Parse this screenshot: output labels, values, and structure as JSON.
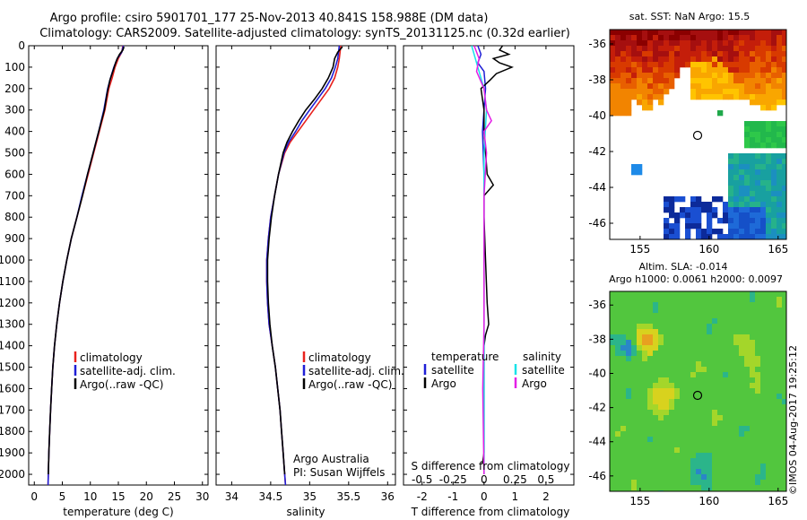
{
  "header": {
    "line1": "Argo profile: csiro 5901701_177 25-Nov-2013 40.841S 158.988E (DM data)",
    "line2": "Climatology: CARS2009. Satellite-adjusted climatology: synTS_20131125.nc (0.32d earlier)"
  },
  "colors": {
    "climatology": "#e8211d",
    "satellite": "#1f1fd6",
    "argo": "#000000",
    "salinity_satellite": "#19e3e8",
    "salinity_argo": "#e41fe6"
  },
  "chart_data": [
    {
      "id": "temperature",
      "type": "line",
      "xlabel": "temperature (deg C)",
      "ylabel": "",
      "xlim": [
        -1,
        31
      ],
      "ylim": [
        2050,
        0
      ],
      "x_ticks": [
        "0",
        "5",
        "10",
        "15",
        "20",
        "25",
        "30"
      ],
      "y_ticks": [
        "0",
        "100",
        "200",
        "300",
        "400",
        "500",
        "600",
        "700",
        "800",
        "900",
        "1000",
        "1100",
        "1200",
        "1300",
        "1400",
        "1500",
        "1600",
        "1700",
        "1800",
        "1900",
        "2000"
      ],
      "legend": [
        "climatology",
        "satellite-adj. clim.",
        "Argo(..raw -QC)"
      ],
      "series": [
        {
          "name": "climatology",
          "points": [
            [
              15.8,
              0
            ],
            [
              15.6,
              30
            ],
            [
              15.0,
              60
            ],
            [
              14.4,
              100
            ],
            [
              13.9,
              150
            ],
            [
              13.3,
              200
            ],
            [
              12.6,
              300
            ],
            [
              11.6,
              400
            ],
            [
              10.6,
              500
            ],
            [
              9.6,
              600
            ],
            [
              8.6,
              700
            ],
            [
              7.6,
              800
            ],
            [
              6.6,
              900
            ],
            [
              5.8,
              1000
            ],
            [
              5.1,
              1100
            ],
            [
              4.5,
              1200
            ],
            [
              4.0,
              1300
            ],
            [
              3.6,
              1400
            ],
            [
              3.3,
              1500
            ],
            [
              3.1,
              1600
            ],
            [
              2.9,
              1700
            ],
            [
              2.75,
              1800
            ],
            [
              2.6,
              1900
            ],
            [
              2.5,
              2000
            ],
            [
              2.45,
              2050
            ]
          ]
        },
        {
          "name": "satellite-adj. clim.",
          "points": [
            [
              15.9,
              0
            ],
            [
              15.6,
              30
            ],
            [
              14.8,
              60
            ],
            [
              14.2,
              100
            ],
            [
              13.6,
              150
            ],
            [
              13.1,
              200
            ],
            [
              12.4,
              300
            ],
            [
              11.5,
              400
            ],
            [
              10.5,
              500
            ],
            [
              9.5,
              600
            ],
            [
              8.5,
              700
            ],
            [
              7.6,
              800
            ],
            [
              6.6,
              900
            ],
            [
              5.8,
              1000
            ],
            [
              5.1,
              1100
            ],
            [
              4.5,
              1200
            ],
            [
              4.0,
              1300
            ],
            [
              3.6,
              1400
            ],
            [
              3.3,
              1500
            ],
            [
              3.1,
              1600
            ],
            [
              2.9,
              1700
            ],
            [
              2.75,
              1800
            ],
            [
              2.6,
              1900
            ],
            [
              2.5,
              2000
            ],
            [
              2.45,
              2050
            ]
          ]
        },
        {
          "name": "Argo(..raw -QC)",
          "points": [
            [
              16.0,
              5
            ],
            [
              15.8,
              20
            ],
            [
              15.2,
              40
            ],
            [
              14.8,
              60
            ],
            [
              14.5,
              80
            ],
            [
              14.0,
              120
            ],
            [
              13.5,
              160
            ],
            [
              13.0,
              220
            ],
            [
              12.5,
              300
            ],
            [
              11.5,
              400
            ],
            [
              10.5,
              500
            ],
            [
              9.5,
              600
            ],
            [
              8.6,
              700
            ],
            [
              7.6,
              800
            ],
            [
              6.6,
              900
            ],
            [
              5.8,
              1000
            ],
            [
              5.1,
              1100
            ],
            [
              4.5,
              1200
            ],
            [
              4.0,
              1300
            ],
            [
              3.6,
              1400
            ],
            [
              3.3,
              1500
            ],
            [
              3.1,
              1600
            ],
            [
              2.9,
              1700
            ],
            [
              2.75,
              1800
            ],
            [
              2.6,
              1900
            ],
            [
              2.5,
              2000
            ]
          ]
        }
      ]
    },
    {
      "id": "salinity",
      "type": "line",
      "xlabel": "salinity",
      "xlim": [
        33.8,
        36.1
      ],
      "ylim": [
        2050,
        0
      ],
      "x_ticks": [
        "34",
        "34.5",
        "35",
        "35.5",
        "36"
      ],
      "legend": [
        "climatology",
        "satellite-adj. clim.",
        "Argo(..raw -QC)"
      ],
      "annotation": [
        "Argo Australia",
        "PI: Susan Wijffels"
      ],
      "series": [
        {
          "name": "climatology",
          "points": [
            [
              35.4,
              0
            ],
            [
              35.38,
              60
            ],
            [
              35.36,
              100
            ],
            [
              35.32,
              150
            ],
            [
              35.25,
              200
            ],
            [
              35.15,
              250
            ],
            [
              35.05,
              300
            ],
            [
              34.95,
              350
            ],
            [
              34.85,
              400
            ],
            [
              34.75,
              450
            ],
            [
              34.68,
              500
            ],
            [
              34.6,
              600
            ],
            [
              34.55,
              700
            ],
            [
              34.5,
              800
            ],
            [
              34.47,
              900
            ],
            [
              34.45,
              1000
            ],
            [
              34.45,
              1100
            ],
            [
              34.46,
              1200
            ],
            [
              34.48,
              1300
            ],
            [
              34.52,
              1400
            ],
            [
              34.56,
              1500
            ],
            [
              34.59,
              1600
            ],
            [
              34.62,
              1700
            ],
            [
              34.64,
              1800
            ],
            [
              34.66,
              1900
            ],
            [
              34.68,
              2000
            ],
            [
              34.69,
              2050
            ]
          ]
        },
        {
          "name": "satellite-adj. clim.",
          "points": [
            [
              35.38,
              0
            ],
            [
              35.36,
              60
            ],
            [
              35.33,
              100
            ],
            [
              35.28,
              150
            ],
            [
              35.2,
              200
            ],
            [
              35.1,
              250
            ],
            [
              35.0,
              300
            ],
            [
              34.9,
              350
            ],
            [
              34.82,
              400
            ],
            [
              34.73,
              450
            ],
            [
              34.67,
              500
            ],
            [
              34.6,
              600
            ],
            [
              34.55,
              700
            ],
            [
              34.5,
              800
            ],
            [
              34.47,
              900
            ],
            [
              34.45,
              1000
            ],
            [
              34.45,
              1100
            ],
            [
              34.46,
              1200
            ],
            [
              34.48,
              1300
            ],
            [
              34.52,
              1400
            ],
            [
              34.56,
              1500
            ],
            [
              34.59,
              1600
            ],
            [
              34.62,
              1700
            ],
            [
              34.64,
              1800
            ],
            [
              34.66,
              1900
            ],
            [
              34.68,
              2000
            ],
            [
              34.69,
              2050
            ]
          ]
        },
        {
          "name": "Argo(..raw -QC)",
          "points": [
            [
              35.42,
              5
            ],
            [
              35.36,
              30
            ],
            [
              35.32,
              60
            ],
            [
              35.3,
              100
            ],
            [
              35.24,
              150
            ],
            [
              35.16,
              200
            ],
            [
              35.06,
              250
            ],
            [
              34.95,
              300
            ],
            [
              34.86,
              350
            ],
            [
              34.78,
              400
            ],
            [
              34.71,
              450
            ],
            [
              34.66,
              500
            ],
            [
              34.6,
              600
            ],
            [
              34.55,
              700
            ],
            [
              34.51,
              800
            ],
            [
              34.48,
              900
            ],
            [
              34.46,
              1000
            ],
            [
              34.46,
              1100
            ],
            [
              34.47,
              1200
            ],
            [
              34.49,
              1300
            ],
            [
              34.52,
              1400
            ],
            [
              34.56,
              1500
            ],
            [
              34.59,
              1600
            ],
            [
              34.62,
              1700
            ],
            [
              34.64,
              1800
            ],
            [
              34.66,
              1900
            ],
            [
              34.68,
              2000
            ]
          ]
        }
      ]
    },
    {
      "id": "difference",
      "type": "line",
      "xlabel": "T difference from climatology",
      "xlabel_top": "S difference from climatology",
      "xlim": [
        -2.6,
        2.9
      ],
      "ylim": [
        2050,
        0
      ],
      "x_ticks": [
        "-2",
        "-1",
        "0",
        "1",
        "2"
      ],
      "x_ticks_s": [
        "-0.5",
        "-0.25",
        "0",
        "0.25",
        "0.5"
      ],
      "legend_left_title": "temperature",
      "legend_right_title": "salinity",
      "legend_left": [
        "satellite",
        "Argo"
      ],
      "legend_right": [
        "satellite",
        "Argo"
      ],
      "series": [
        {
          "name": "T satellite",
          "points": [
            [
              -0.2,
              0
            ],
            [
              -0.1,
              40
            ],
            [
              -0.2,
              80
            ],
            [
              0,
              120
            ],
            [
              0.05,
              200
            ],
            [
              0,
              300
            ],
            [
              -0.05,
              400
            ],
            [
              0,
              600
            ],
            [
              0,
              800
            ],
            [
              0,
              1000
            ],
            [
              0,
              1300
            ],
            [
              0,
              1600
            ],
            [
              0,
              1900
            ],
            [
              0,
              2000
            ]
          ]
        },
        {
          "name": "T Argo",
          "points": [
            [
              0.6,
              0
            ],
            [
              0.5,
              20
            ],
            [
              0.8,
              40
            ],
            [
              0.3,
              60
            ],
            [
              0.5,
              80
            ],
            [
              0.9,
              100
            ],
            [
              0.4,
              130
            ],
            [
              0.2,
              160
            ],
            [
              -0.1,
              200
            ],
            [
              0,
              300
            ],
            [
              0,
              400
            ],
            [
              0.1,
              600
            ],
            [
              0.3,
              650
            ],
            [
              0,
              700
            ],
            [
              0,
              800
            ],
            [
              0.05,
              1000
            ],
            [
              0.1,
              1200
            ],
            [
              0.15,
              1300
            ],
            [
              0.05,
              1350
            ],
            [
              0,
              1400
            ],
            [
              0,
              1600
            ],
            [
              0,
              1900
            ],
            [
              -0.05,
              1950
            ]
          ]
        },
        {
          "name": "S satellite",
          "points": [
            [
              -0.1,
              0
            ],
            [
              -0.05,
              100
            ],
            [
              0,
              200
            ],
            [
              0.02,
              300
            ],
            [
              0,
              500
            ],
            [
              0,
              800
            ],
            [
              0,
              1200
            ],
            [
              0,
              1600
            ],
            [
              0,
              2000
            ]
          ]
        },
        {
          "name": "S Argo",
          "points": [
            [
              -0.08,
              0
            ],
            [
              -0.04,
              60
            ],
            [
              -0.06,
              120
            ],
            [
              0,
              200
            ],
            [
              0.02,
              300
            ],
            [
              0.06,
              350
            ],
            [
              0,
              400
            ],
            [
              0.02,
              500
            ],
            [
              0,
              700
            ],
            [
              0,
              1000
            ],
            [
              0,
              1300
            ],
            [
              -0.01,
              1600
            ],
            [
              0,
              2000
            ]
          ]
        }
      ]
    },
    {
      "id": "sst_map",
      "type": "heatmap",
      "title": "sat. SST: NaN Argo: 15.5",
      "x_ticks": [
        "155",
        "160",
        "165"
      ],
      "y_ticks": [
        "-36",
        "-38",
        "-40",
        "-42",
        "-44",
        "-46"
      ]
    },
    {
      "id": "sla_map",
      "type": "heatmap",
      "title1": "Altim. SLA: -0.014",
      "title2": "Argo h1000: 0.0061 h2000: 0.0097",
      "x_ticks": [
        "155",
        "160",
        "165"
      ],
      "y_ticks": [
        "-36",
        "-38",
        "-40",
        "-42",
        "-44",
        "-46"
      ]
    }
  ],
  "credit": "©IMOS 04-Aug-2017 19:25:12"
}
